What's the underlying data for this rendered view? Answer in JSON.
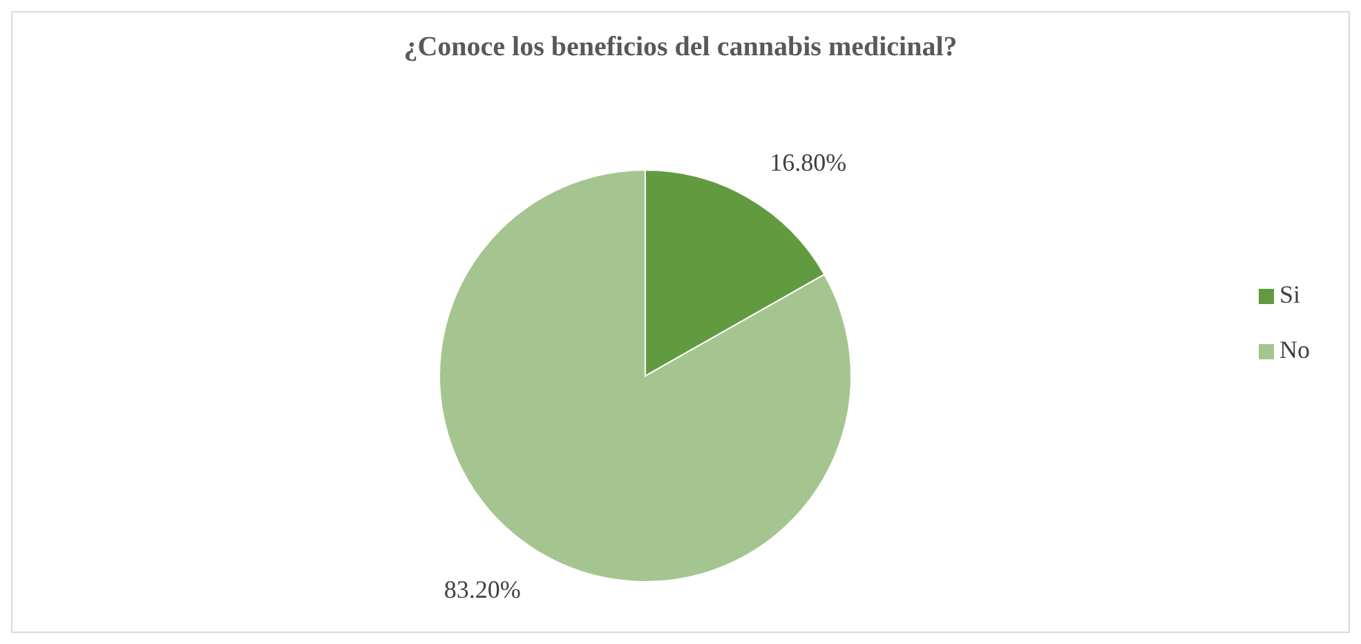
{
  "chart_data": {
    "type": "pie",
    "title": "¿Conoce los beneficios del cannabis medicinal?",
    "categories": [
      "Si",
      "No"
    ],
    "values": [
      16.8,
      83.2
    ],
    "colors": [
      "#629b3f",
      "#a5c590"
    ],
    "value_labels": [
      "16.80%",
      "83.20%"
    ],
    "legend": "right"
  }
}
